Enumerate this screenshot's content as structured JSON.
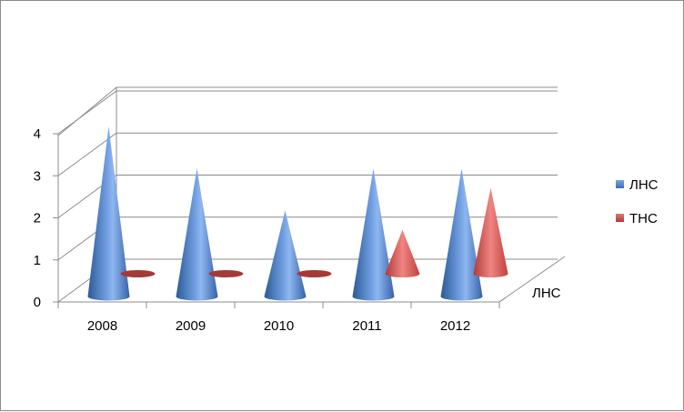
{
  "chart_data": {
    "type": "bar",
    "shape": "cone-3d",
    "categories": [
      "2008",
      "2009",
      "2010",
      "2011",
      "2012"
    ],
    "series": [
      {
        "name": "ЛНС",
        "values": [
          4,
          3,
          2,
          3,
          3
        ],
        "color": "#4f81bd"
      },
      {
        "name": "ТНС",
        "values": [
          0,
          0,
          0,
          1,
          2
        ],
        "color": "#c0504d"
      }
    ],
    "depth_axis_label": "ЛНС",
    "yticks": [
      0,
      1,
      2,
      3,
      4
    ],
    "ylim": [
      0,
      4
    ],
    "grid": true,
    "legend_position": "right"
  }
}
